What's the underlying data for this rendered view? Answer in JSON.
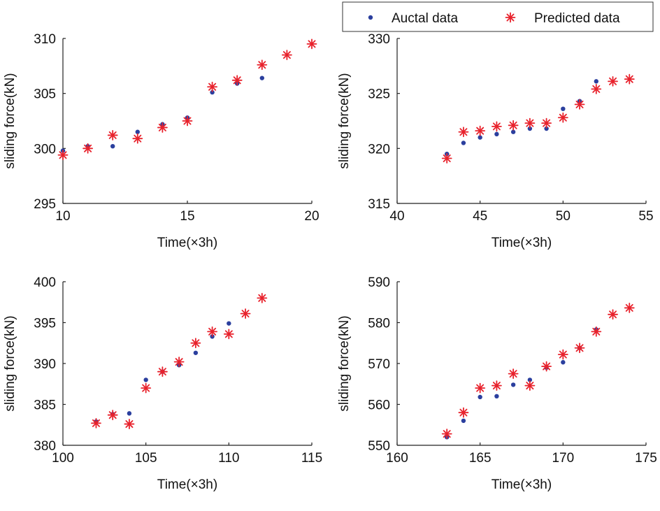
{
  "legend": {
    "actual_label": "Auctal data",
    "predicted_label": "Predicted data",
    "actual_color": "#2b3f9e",
    "predicted_color": "#e8222c"
  },
  "chart_data": [
    {
      "type": "scatter",
      "xlabel": "Time(×3h)",
      "ylabel": "sliding force(kN)",
      "xlim": [
        10,
        20
      ],
      "ylim": [
        295,
        310
      ],
      "xticks": [
        10,
        15,
        20
      ],
      "yticks": [
        295,
        300,
        305,
        310
      ],
      "grid": false,
      "series": [
        {
          "name": "Auctal data",
          "x": [
            10,
            11,
            12,
            13,
            14,
            15,
            16,
            17,
            18
          ],
          "y": [
            299.8,
            300.2,
            300.2,
            301.5,
            302.2,
            302.8,
            305.1,
            305.9,
            306.4
          ]
        },
        {
          "name": "Predicted data",
          "x": [
            10,
            11,
            12,
            13,
            14,
            15,
            16,
            17,
            18,
            19,
            20
          ],
          "y": [
            299.4,
            300.0,
            301.2,
            300.9,
            301.9,
            302.5,
            305.6,
            306.2,
            307.6,
            308.5,
            309.5
          ]
        }
      ]
    },
    {
      "type": "scatter",
      "xlabel": "Time(×3h)",
      "ylabel": "sliding force(kN)",
      "xlim": [
        40,
        55
      ],
      "ylim": [
        315,
        330
      ],
      "xticks": [
        40,
        45,
        50,
        55
      ],
      "yticks": [
        315,
        320,
        325,
        330
      ],
      "grid": false,
      "series": [
        {
          "name": "Auctal data",
          "x": [
            43,
            44,
            45,
            46,
            47,
            48,
            49,
            50,
            51,
            52
          ],
          "y": [
            319.5,
            320.5,
            321.0,
            321.3,
            321.5,
            321.8,
            321.8,
            323.6,
            324.3,
            326.1
          ]
        },
        {
          "name": "Predicted data",
          "x": [
            43,
            44,
            45,
            46,
            47,
            48,
            49,
            50,
            51,
            52,
            53,
            54
          ],
          "y": [
            319.1,
            321.5,
            321.6,
            322.0,
            322.1,
            322.3,
            322.3,
            322.8,
            324.0,
            325.4,
            326.1,
            326.3
          ]
        }
      ]
    },
    {
      "type": "scatter",
      "xlabel": "Time(×3h)",
      "ylabel": "sliding force(kN)",
      "xlim": [
        100,
        115
      ],
      "ylim": [
        380,
        400
      ],
      "xticks": [
        100,
        105,
        110,
        115
      ],
      "yticks": [
        380,
        385,
        390,
        395,
        400
      ],
      "grid": false,
      "series": [
        {
          "name": "Auctal data",
          "x": [
            102,
            103,
            104,
            105,
            106,
            107,
            108,
            109,
            110
          ],
          "y": [
            382.9,
            383.8,
            383.9,
            388.0,
            389.0,
            389.8,
            391.3,
            393.3,
            394.9
          ]
        },
        {
          "name": "Predicted data",
          "x": [
            102,
            103,
            104,
            105,
            106,
            107,
            108,
            109,
            110,
            111,
            112
          ],
          "y": [
            382.7,
            383.7,
            382.6,
            387.0,
            389.0,
            390.2,
            392.5,
            393.9,
            393.6,
            396.1,
            398.0
          ]
        }
      ]
    },
    {
      "type": "scatter",
      "xlabel": "Time(×3h)",
      "ylabel": "sliding force(kN)",
      "xlim": [
        160,
        175
      ],
      "ylim": [
        550,
        590
      ],
      "xticks": [
        160,
        165,
        170,
        175
      ],
      "yticks": [
        550,
        560,
        570,
        580,
        590
      ],
      "grid": false,
      "series": [
        {
          "name": "Auctal data",
          "x": [
            163,
            164,
            165,
            166,
            167,
            168,
            169,
            170,
            171,
            172
          ],
          "y": [
            552.0,
            556.0,
            561.8,
            562.0,
            564.8,
            566.0,
            569.0,
            570.3,
            573.8,
            578.3
          ]
        },
        {
          "name": "Predicted data",
          "x": [
            163,
            164,
            165,
            166,
            167,
            168,
            169,
            170,
            171,
            172,
            173,
            174
          ],
          "y": [
            552.8,
            558.0,
            564.0,
            564.6,
            567.5,
            564.6,
            569.3,
            572.2,
            573.8,
            577.8,
            582.0,
            583.6
          ]
        }
      ]
    }
  ]
}
